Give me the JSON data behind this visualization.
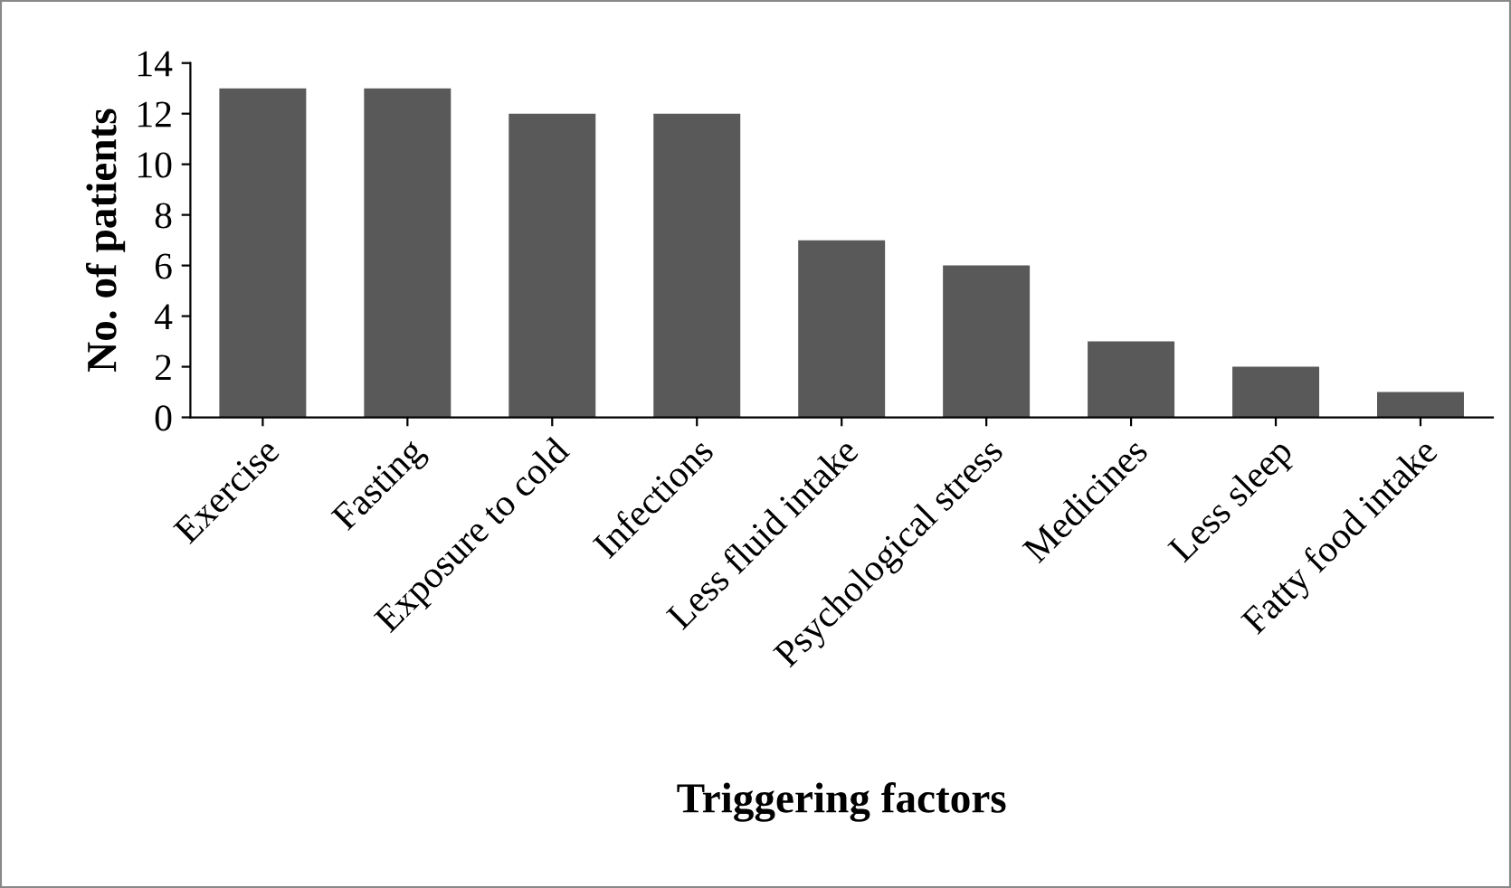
{
  "chart_data": {
    "type": "bar",
    "xlabel": "Triggering factors",
    "ylabel": "No. of patients",
    "categories": [
      "Exercise",
      "Fasting",
      "Exposure to cold",
      "Infections",
      "Less fluid intake",
      "Psychological stress",
      "Medicines",
      "Less sleep",
      "Fatty food intake"
    ],
    "values": [
      13,
      13,
      12,
      12,
      7,
      6,
      3,
      2,
      1
    ],
    "color": "#595959",
    "ylim": [
      0,
      14
    ],
    "yticks": [
      0,
      2,
      4,
      6,
      8,
      10,
      12,
      14
    ],
    "grid": false,
    "legend": false
  }
}
